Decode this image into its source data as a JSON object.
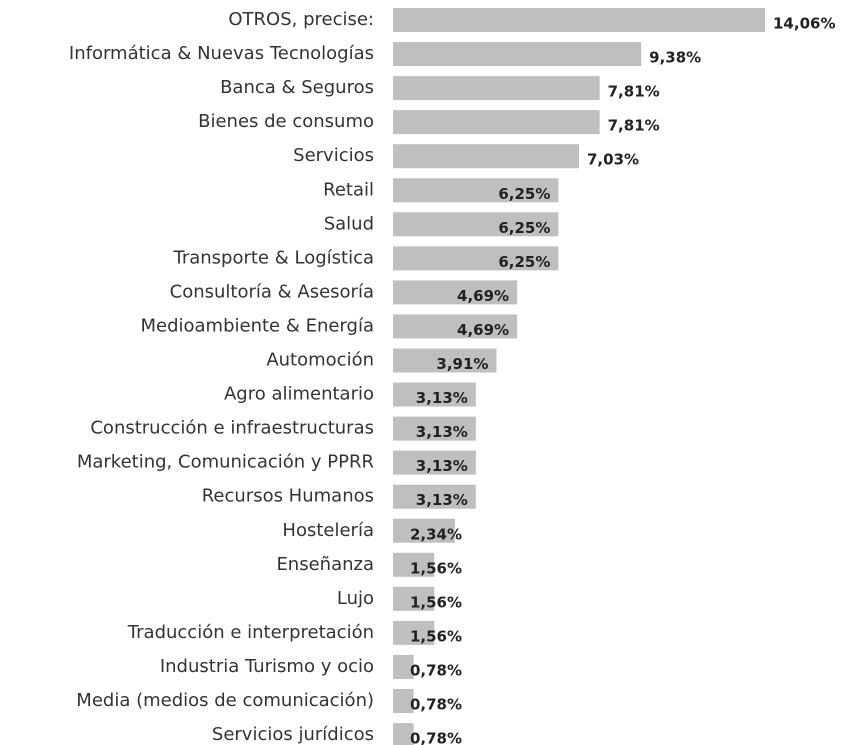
{
  "chart_data": {
    "type": "bar",
    "orientation": "horizontal",
    "color": "#bfbfbf",
    "categories": [
      "OTROS, precise:",
      "Informática & Nuevas Tecnologías",
      "Banca & Seguros",
      "Bienes de consumo",
      "Servicios",
      "Retail",
      "Salud",
      "Transporte & Logística",
      "Consultoría & Asesoría",
      "Medioambiente & Energía",
      "Automoción",
      "Agro alimentario",
      "Construcción e infraestructuras",
      "Marketing, Comunicación  y PPRR",
      "Recursos Humanos",
      "Hostelería",
      "Enseñanza",
      "Lujo",
      "Traducción e interpretación",
      "Industria Turismo y ocio",
      "Media (medios de comunicación)",
      "Servicios jurídicos"
    ],
    "values": [
      14.06,
      9.38,
      7.81,
      7.81,
      7.03,
      6.25,
      6.25,
      6.25,
      4.69,
      4.69,
      3.91,
      3.13,
      3.13,
      3.13,
      3.13,
      2.34,
      1.56,
      1.56,
      1.56,
      0.78,
      0.78,
      0.78
    ],
    "value_labels": [
      "14,06%",
      "9,38%",
      "7,81%",
      "7,81%",
      "7,03%",
      "6,25%",
      "6,25%",
      "6,25%",
      "4,69%",
      "4,69%",
      "3,91%",
      "3,13%",
      "3,13%",
      "3,13%",
      "3,13%",
      "2,34%",
      "1,56%",
      "1,56%",
      "1,56%",
      "0,78%",
      "0,78%",
      "0,78%"
    ]
  }
}
